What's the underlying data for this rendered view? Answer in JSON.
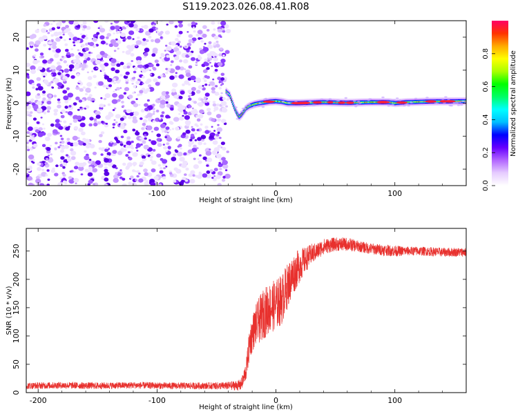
{
  "title": "S119.2023.026.08.41.R08",
  "chart_data": [
    {
      "type": "heatmap",
      "xlabel": "Height of straight line (km)",
      "ylabel": "Frequency (Hz)",
      "xlim": [
        -210,
        160
      ],
      "ylim": [
        -25,
        25
      ],
      "x_ticks": [
        -200,
        -100,
        0,
        100
      ],
      "y_ticks": [
        -20,
        -10,
        0,
        10,
        20
      ],
      "colorbar": {
        "label": "Normalized spectral amplitude",
        "range": [
          0,
          1
        ],
        "ticks": [
          0.0,
          0.2,
          0.4,
          0.6,
          0.8
        ],
        "tick_labels": [
          "0.0",
          "0.2",
          "0.4",
          "0.6",
          "0.8"
        ],
        "colormap": [
          "#ffffff",
          "#e6ccff",
          "#b266ff",
          "#6600ff",
          "#0000ff",
          "#00bfff",
          "#00ffff",
          "#00ff66",
          "#00ff00",
          "#aaff00",
          "#ffff00",
          "#ffaa00",
          "#ff3300",
          "#ff0066"
        ]
      },
      "noise_region": {
        "x_range": [
          -210,
          -40
        ],
        "y_range": [
          -25,
          25
        ],
        "amplitude_range": [
          0.0,
          0.15
        ]
      },
      "signal_trace": {
        "x": [
          -42,
          -39,
          -37,
          -35,
          -33,
          -31,
          -29,
          -27,
          -25,
          -22,
          -18,
          -14,
          -10,
          -5,
          0,
          5,
          10,
          20,
          40,
          60,
          80,
          95,
          100,
          110,
          130,
          160
        ],
        "y": [
          3.5,
          2.5,
          0.5,
          -1.5,
          -3.0,
          -4.2,
          -3.5,
          -2.5,
          -1.5,
          -0.8,
          -0.3,
          0.0,
          0.2,
          0.5,
          0.6,
          0.4,
          0.0,
          0.0,
          0.3,
          0.1,
          0.3,
          0.3,
          0.0,
          0.3,
          0.5,
          0.6
        ],
        "peak_amplitude": 0.9,
        "band_width_hz": 1.5
      }
    },
    {
      "type": "line",
      "xlabel": "Height of straight line (km)",
      "ylabel": "SNR (10 * v/v)",
      "xlim": [
        -210,
        160
      ],
      "ylim": [
        0,
        290
      ],
      "x_ticks": [
        -200,
        -100,
        0,
        100
      ],
      "y_ticks": [
        0,
        50,
        100,
        150,
        200,
        250
      ],
      "color": "#e8312e",
      "series": [
        {
          "x": [
            -210,
            -180,
            -150,
            -120,
            -90,
            -60,
            -40,
            -30,
            -28,
            -25,
            -22,
            -18,
            -15,
            -10,
            -5,
            0,
            5,
            10,
            15,
            20,
            25,
            30,
            35,
            40,
            50,
            60,
            70,
            80,
            90,
            100,
            110,
            120,
            130,
            140,
            150,
            160
          ],
          "y": [
            12,
            13,
            12,
            13,
            12,
            12,
            12,
            13,
            20,
            40,
            90,
            115,
            125,
            140,
            150,
            155,
            165,
            190,
            210,
            225,
            235,
            245,
            250,
            258,
            262,
            262,
            258,
            254,
            252,
            250,
            250,
            250,
            249,
            248,
            248,
            248
          ],
          "noise_amplitude": [
            6,
            6,
            6,
            6,
            6,
            6,
            7,
            10,
            12,
            18,
            30,
            35,
            40,
            45,
            45,
            45,
            45,
            40,
            35,
            30,
            22,
            18,
            15,
            14,
            12,
            12,
            10,
            10,
            10,
            10,
            8,
            8,
            8,
            8,
            8,
            8
          ]
        }
      ]
    }
  ]
}
